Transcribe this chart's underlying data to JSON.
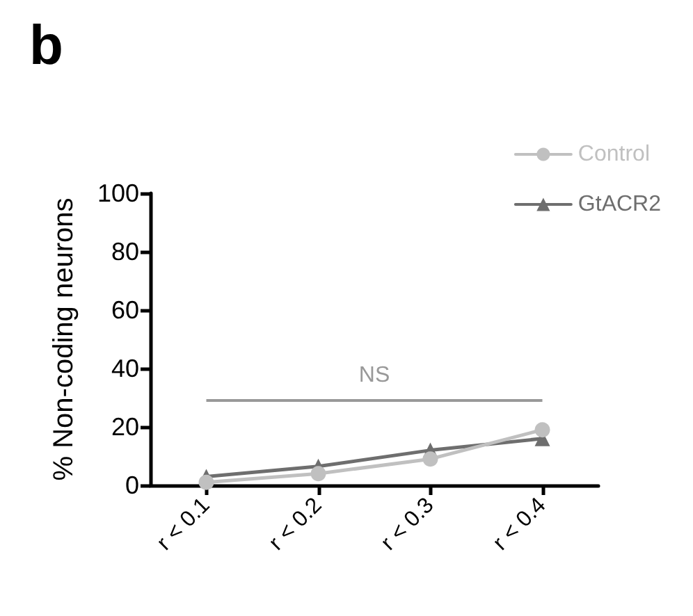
{
  "chart_data": {
    "type": "line",
    "title": "b",
    "ylabel": "% Non-coding neurons",
    "categories": [
      "r < 0.1",
      "r < 0.2",
      "r < 0.3",
      "r < 0.4"
    ],
    "series": [
      {
        "name": "Control",
        "color": "#c0c0c0",
        "marker": "circle",
        "values": [
          1,
          4,
          9,
          19
        ]
      },
      {
        "name": "GtACR2",
        "color": "#6e6e6e",
        "marker": "triangle",
        "values": [
          3,
          6.5,
          12,
          16
        ]
      }
    ],
    "ylim": [
      0,
      100
    ],
    "yticks": [
      0,
      20,
      40,
      60,
      80,
      100
    ],
    "grid": false,
    "legend": "top right",
    "line_style": "solid",
    "ref_lines": [
      {
        "axis": "y",
        "value": 29,
        "label": "NS",
        "color": "#999999"
      }
    ]
  }
}
